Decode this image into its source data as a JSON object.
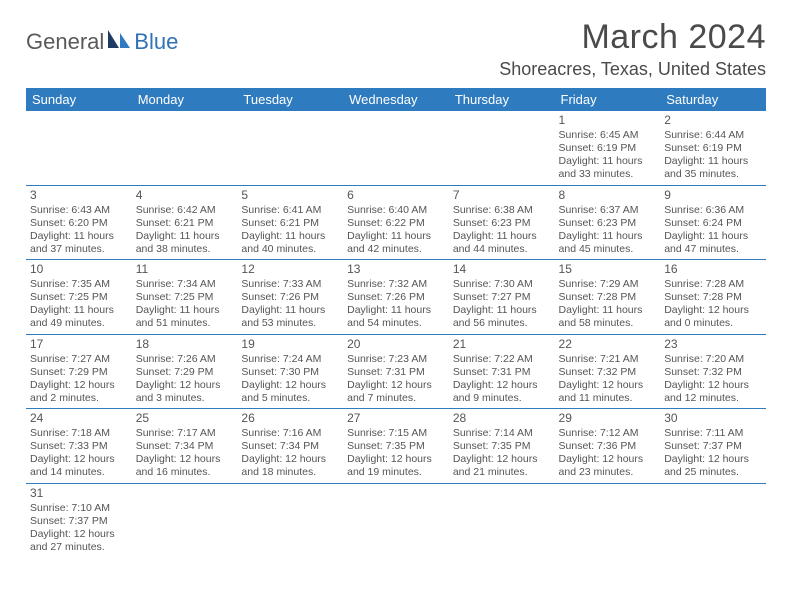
{
  "logo": {
    "text1": "General",
    "text2": "Blue"
  },
  "title": "March 2024",
  "location": "Shoreacres, Texas, United States",
  "headers": [
    "Sunday",
    "Monday",
    "Tuesday",
    "Wednesday",
    "Thursday",
    "Friday",
    "Saturday"
  ],
  "colors": {
    "header_bg": "#2f7bbf",
    "header_fg": "#ffffff",
    "border": "#2f7bbf",
    "text": "#555555",
    "title": "#4a4a4a"
  },
  "weeks": [
    [
      null,
      null,
      null,
      null,
      null,
      {
        "n": "1",
        "sunrise": "Sunrise: 6:45 AM",
        "sunset": "Sunset: 6:19 PM",
        "day1": "Daylight: 11 hours",
        "day2": "and 33 minutes."
      },
      {
        "n": "2",
        "sunrise": "Sunrise: 6:44 AM",
        "sunset": "Sunset: 6:19 PM",
        "day1": "Daylight: 11 hours",
        "day2": "and 35 minutes."
      }
    ],
    [
      {
        "n": "3",
        "sunrise": "Sunrise: 6:43 AM",
        "sunset": "Sunset: 6:20 PM",
        "day1": "Daylight: 11 hours",
        "day2": "and 37 minutes."
      },
      {
        "n": "4",
        "sunrise": "Sunrise: 6:42 AM",
        "sunset": "Sunset: 6:21 PM",
        "day1": "Daylight: 11 hours",
        "day2": "and 38 minutes."
      },
      {
        "n": "5",
        "sunrise": "Sunrise: 6:41 AM",
        "sunset": "Sunset: 6:21 PM",
        "day1": "Daylight: 11 hours",
        "day2": "and 40 minutes."
      },
      {
        "n": "6",
        "sunrise": "Sunrise: 6:40 AM",
        "sunset": "Sunset: 6:22 PM",
        "day1": "Daylight: 11 hours",
        "day2": "and 42 minutes."
      },
      {
        "n": "7",
        "sunrise": "Sunrise: 6:38 AM",
        "sunset": "Sunset: 6:23 PM",
        "day1": "Daylight: 11 hours",
        "day2": "and 44 minutes."
      },
      {
        "n": "8",
        "sunrise": "Sunrise: 6:37 AM",
        "sunset": "Sunset: 6:23 PM",
        "day1": "Daylight: 11 hours",
        "day2": "and 45 minutes."
      },
      {
        "n": "9",
        "sunrise": "Sunrise: 6:36 AM",
        "sunset": "Sunset: 6:24 PM",
        "day1": "Daylight: 11 hours",
        "day2": "and 47 minutes."
      }
    ],
    [
      {
        "n": "10",
        "sunrise": "Sunrise: 7:35 AM",
        "sunset": "Sunset: 7:25 PM",
        "day1": "Daylight: 11 hours",
        "day2": "and 49 minutes."
      },
      {
        "n": "11",
        "sunrise": "Sunrise: 7:34 AM",
        "sunset": "Sunset: 7:25 PM",
        "day1": "Daylight: 11 hours",
        "day2": "and 51 minutes."
      },
      {
        "n": "12",
        "sunrise": "Sunrise: 7:33 AM",
        "sunset": "Sunset: 7:26 PM",
        "day1": "Daylight: 11 hours",
        "day2": "and 53 minutes."
      },
      {
        "n": "13",
        "sunrise": "Sunrise: 7:32 AM",
        "sunset": "Sunset: 7:26 PM",
        "day1": "Daylight: 11 hours",
        "day2": "and 54 minutes."
      },
      {
        "n": "14",
        "sunrise": "Sunrise: 7:30 AM",
        "sunset": "Sunset: 7:27 PM",
        "day1": "Daylight: 11 hours",
        "day2": "and 56 minutes."
      },
      {
        "n": "15",
        "sunrise": "Sunrise: 7:29 AM",
        "sunset": "Sunset: 7:28 PM",
        "day1": "Daylight: 11 hours",
        "day2": "and 58 minutes."
      },
      {
        "n": "16",
        "sunrise": "Sunrise: 7:28 AM",
        "sunset": "Sunset: 7:28 PM",
        "day1": "Daylight: 12 hours",
        "day2": "and 0 minutes."
      }
    ],
    [
      {
        "n": "17",
        "sunrise": "Sunrise: 7:27 AM",
        "sunset": "Sunset: 7:29 PM",
        "day1": "Daylight: 12 hours",
        "day2": "and 2 minutes."
      },
      {
        "n": "18",
        "sunrise": "Sunrise: 7:26 AM",
        "sunset": "Sunset: 7:29 PM",
        "day1": "Daylight: 12 hours",
        "day2": "and 3 minutes."
      },
      {
        "n": "19",
        "sunrise": "Sunrise: 7:24 AM",
        "sunset": "Sunset: 7:30 PM",
        "day1": "Daylight: 12 hours",
        "day2": "and 5 minutes."
      },
      {
        "n": "20",
        "sunrise": "Sunrise: 7:23 AM",
        "sunset": "Sunset: 7:31 PM",
        "day1": "Daylight: 12 hours",
        "day2": "and 7 minutes."
      },
      {
        "n": "21",
        "sunrise": "Sunrise: 7:22 AM",
        "sunset": "Sunset: 7:31 PM",
        "day1": "Daylight: 12 hours",
        "day2": "and 9 minutes."
      },
      {
        "n": "22",
        "sunrise": "Sunrise: 7:21 AM",
        "sunset": "Sunset: 7:32 PM",
        "day1": "Daylight: 12 hours",
        "day2": "and 11 minutes."
      },
      {
        "n": "23",
        "sunrise": "Sunrise: 7:20 AM",
        "sunset": "Sunset: 7:32 PM",
        "day1": "Daylight: 12 hours",
        "day2": "and 12 minutes."
      }
    ],
    [
      {
        "n": "24",
        "sunrise": "Sunrise: 7:18 AM",
        "sunset": "Sunset: 7:33 PM",
        "day1": "Daylight: 12 hours",
        "day2": "and 14 minutes."
      },
      {
        "n": "25",
        "sunrise": "Sunrise: 7:17 AM",
        "sunset": "Sunset: 7:34 PM",
        "day1": "Daylight: 12 hours",
        "day2": "and 16 minutes."
      },
      {
        "n": "26",
        "sunrise": "Sunrise: 7:16 AM",
        "sunset": "Sunset: 7:34 PM",
        "day1": "Daylight: 12 hours",
        "day2": "and 18 minutes."
      },
      {
        "n": "27",
        "sunrise": "Sunrise: 7:15 AM",
        "sunset": "Sunset: 7:35 PM",
        "day1": "Daylight: 12 hours",
        "day2": "and 19 minutes."
      },
      {
        "n": "28",
        "sunrise": "Sunrise: 7:14 AM",
        "sunset": "Sunset: 7:35 PM",
        "day1": "Daylight: 12 hours",
        "day2": "and 21 minutes."
      },
      {
        "n": "29",
        "sunrise": "Sunrise: 7:12 AM",
        "sunset": "Sunset: 7:36 PM",
        "day1": "Daylight: 12 hours",
        "day2": "and 23 minutes."
      },
      {
        "n": "30",
        "sunrise": "Sunrise: 7:11 AM",
        "sunset": "Sunset: 7:37 PM",
        "day1": "Daylight: 12 hours",
        "day2": "and 25 minutes."
      }
    ],
    [
      {
        "n": "31",
        "sunrise": "Sunrise: 7:10 AM",
        "sunset": "Sunset: 7:37 PM",
        "day1": "Daylight: 12 hours",
        "day2": "and 27 minutes."
      },
      null,
      null,
      null,
      null,
      null,
      null
    ]
  ]
}
